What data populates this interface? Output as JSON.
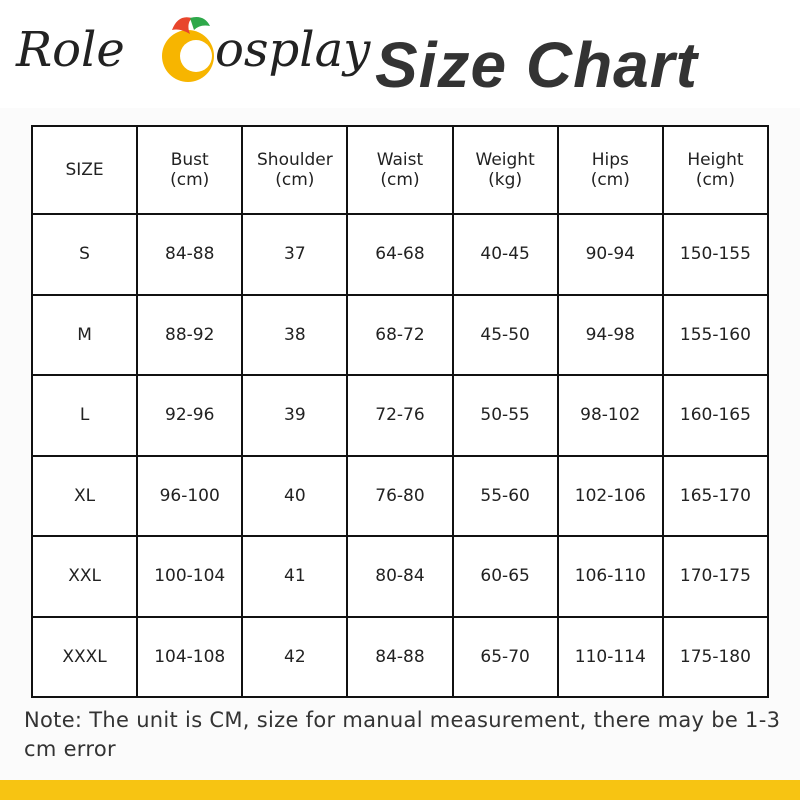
{
  "header": {
    "brand_start": "Role",
    "brand_end": "osplay",
    "title": "Size Chart"
  },
  "table": {
    "columns": [
      {
        "name": "SIZE"
      },
      {
        "name": "Bust",
        "unit": "(cm)"
      },
      {
        "name": "Shoulder",
        "unit": "(cm)"
      },
      {
        "name": "Waist",
        "unit": "(cm)"
      },
      {
        "name": "Weight",
        "unit": "(kg)"
      },
      {
        "name": "Hips",
        "unit": "(cm)"
      },
      {
        "name": "Height",
        "unit": "(cm)"
      }
    ],
    "rows": [
      [
        "S",
        "84-88",
        "37",
        "64-68",
        "40-45",
        "90-94",
        "150-155"
      ],
      [
        "M",
        "88-92",
        "38",
        "68-72",
        "45-50",
        "94-98",
        "155-160"
      ],
      [
        "L",
        "92-96",
        "39",
        "72-76",
        "50-55",
        "98-102",
        "160-165"
      ],
      [
        "XL",
        "96-100",
        "40",
        "76-80",
        "55-60",
        "102-106",
        "165-170"
      ],
      [
        "XXL",
        "100-104",
        "41",
        "80-84",
        "60-65",
        "106-110",
        "170-175"
      ],
      [
        "XXXL",
        "104-108",
        "42",
        "84-88",
        "65-70",
        "110-114",
        "175-180"
      ]
    ]
  },
  "note": "Note: The unit is CM, size for manual measurement, there may be 1-3 cm error"
}
